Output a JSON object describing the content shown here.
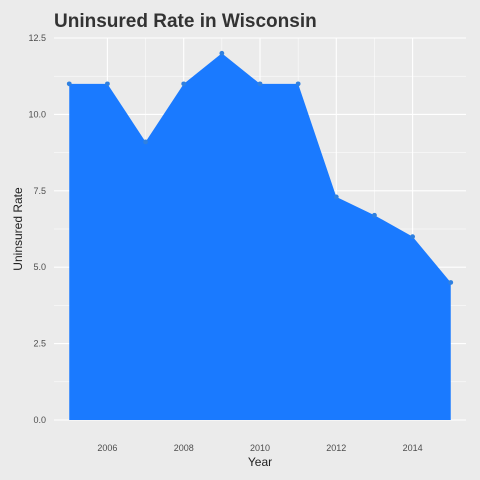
{
  "chart_data": {
    "type": "area",
    "title": "Uninsured Rate in Wisconsin",
    "xlabel": "Year",
    "ylabel": "Uninsured Rate",
    "x": [
      2005,
      2006,
      2007,
      2008,
      2009,
      2010,
      2011,
      2012,
      2013,
      2014,
      2015
    ],
    "values": [
      11.0,
      11.0,
      9.1,
      11.0,
      12.0,
      11.0,
      11.0,
      7.3,
      6.7,
      6.0,
      4.5
    ],
    "xlim": [
      2004.6,
      2015.4
    ],
    "ylim": [
      0,
      12.5
    ],
    "x_ticks": [
      "2006",
      "2008",
      "2010",
      "2012",
      "2014"
    ],
    "y_ticks": [
      "0.0",
      "2.5",
      "5.0",
      "7.5",
      "10.0",
      "12.5"
    ],
    "grid": true,
    "legend": "none",
    "colors": {
      "fill": "#1a7aff",
      "points": "#2f80e0",
      "panel": "#ebebeb",
      "grid": "#ffffff"
    }
  }
}
